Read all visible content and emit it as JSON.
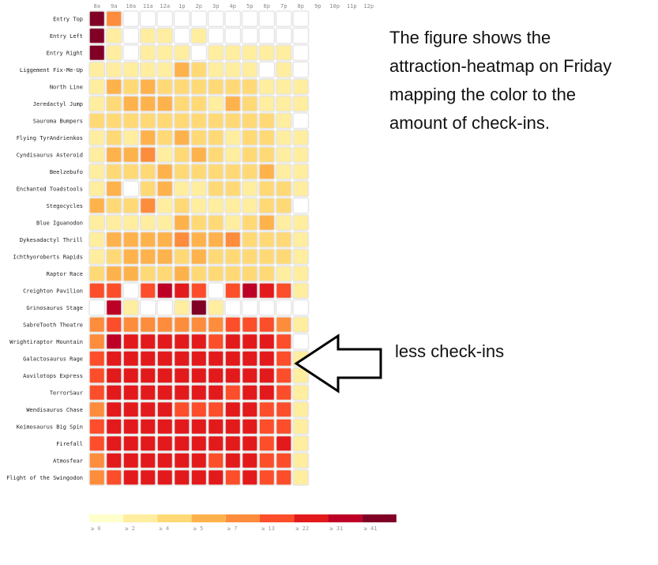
{
  "chart_data": {
    "type": "heatmap",
    "columns": [
      "8a",
      "9a",
      "10a",
      "11a",
      "12a",
      "1p",
      "2p",
      "3p",
      "4p",
      "5p",
      "6p",
      "7p",
      "8p",
      "9p",
      "10p",
      "11p",
      "12p"
    ],
    "rows": [
      "Entry Top",
      "Entry Left",
      "Entry Right",
      "Liggement Fix-Me-Up",
      "North Line",
      "Jeredactyl Jump",
      "Sauroma Bumpers",
      "Flying TyrAndrienkos",
      "Cyndisaurus Asteroid",
      "Beelzebufo",
      "Enchanted Toadstools",
      "Stegocycles",
      "Blue Iguanodon",
      "Dykesadactyl Thrill",
      "Ichthyoroberts Rapids",
      "Raptor Race",
      "Creighton Pavilion",
      "Grinosaurus Stage",
      "SabreTooth Theatre",
      "Wrightiraptor Mountain",
      "Galactosaurus Rage",
      "Auvilotops Express",
      "TerrorSaur",
      "Wendisaurus Chase",
      "Keimosaurus Big Spin",
      "Firefall",
      "Atmosfear",
      "Flight of the Swingodon"
    ],
    "levels": [
      [
        8,
        4,
        0,
        0,
        0,
        0,
        0,
        0,
        0,
        0,
        0,
        0,
        0
      ],
      [
        8,
        1,
        0,
        1,
        1,
        0,
        1,
        0,
        0,
        0,
        0,
        0,
        0
      ],
      [
        8,
        1,
        0,
        1,
        1,
        1,
        0,
        1,
        1,
        1,
        1,
        1,
        0
      ],
      [
        1,
        1,
        1,
        1,
        1,
        3,
        2,
        1,
        1,
        1,
        0,
        1,
        0
      ],
      [
        1,
        3,
        2,
        3,
        2,
        2,
        2,
        2,
        2,
        2,
        1,
        1,
        1
      ],
      [
        1,
        2,
        3,
        3,
        3,
        2,
        2,
        1,
        3,
        2,
        1,
        1,
        1
      ],
      [
        2,
        2,
        2,
        2,
        2,
        2,
        2,
        2,
        2,
        2,
        2,
        1,
        0
      ],
      [
        1,
        2,
        1,
        3,
        2,
        3,
        2,
        2,
        1,
        2,
        2,
        1,
        1
      ],
      [
        1,
        3,
        3,
        4,
        1,
        2,
        3,
        2,
        1,
        2,
        2,
        1,
        1
      ],
      [
        1,
        2,
        2,
        2,
        3,
        2,
        2,
        2,
        2,
        2,
        3,
        1,
        1
      ],
      [
        1,
        3,
        0,
        2,
        3,
        1,
        1,
        2,
        2,
        1,
        2,
        2,
        1
      ],
      [
        3,
        2,
        2,
        4,
        1,
        2,
        1,
        1,
        1,
        1,
        2,
        2,
        0
      ],
      [
        1,
        1,
        1,
        1,
        1,
        3,
        2,
        2,
        1,
        2,
        3,
        1,
        1
      ],
      [
        1,
        3,
        3,
        3,
        3,
        4,
        3,
        3,
        4,
        2,
        2,
        2,
        1
      ],
      [
        1,
        2,
        3,
        3,
        3,
        2,
        3,
        2,
        2,
        2,
        2,
        2,
        1
      ],
      [
        2,
        3,
        3,
        2,
        2,
        3,
        2,
        2,
        2,
        2,
        2,
        1,
        1
      ],
      [
        5,
        5,
        0,
        5,
        7,
        6,
        5,
        0,
        5,
        7,
        6,
        5,
        1
      ],
      [
        0,
        7,
        1,
        0,
        0,
        1,
        8,
        1,
        0,
        0,
        0,
        0,
        0
      ],
      [
        4,
        5,
        4,
        4,
        4,
        4,
        4,
        4,
        5,
        5,
        5,
        4,
        1
      ],
      [
        4,
        7,
        6,
        6,
        6,
        6,
        6,
        5,
        6,
        6,
        6,
        5,
        0
      ],
      [
        5,
        6,
        6,
        6,
        6,
        6,
        6,
        6,
        6,
        6,
        6,
        5,
        1
      ],
      [
        5,
        6,
        6,
        6,
        6,
        6,
        6,
        6,
        6,
        6,
        6,
        5,
        1
      ],
      [
        5,
        6,
        6,
        6,
        6,
        6,
        6,
        6,
        5,
        6,
        6,
        5,
        1
      ],
      [
        4,
        6,
        6,
        6,
        6,
        5,
        5,
        5,
        6,
        6,
        5,
        5,
        1
      ],
      [
        5,
        6,
        6,
        6,
        6,
        6,
        6,
        6,
        6,
        6,
        5,
        5,
        1
      ],
      [
        5,
        6,
        6,
        6,
        6,
        6,
        6,
        6,
        6,
        6,
        5,
        6,
        1
      ],
      [
        4,
        6,
        6,
        6,
        6,
        6,
        6,
        5,
        6,
        6,
        5,
        5,
        1
      ],
      [
        4,
        5,
        6,
        6,
        6,
        6,
        6,
        6,
        5,
        6,
        5,
        5,
        1
      ]
    ],
    "legend_labels": [
      "≥ 0",
      "≥ 2",
      "≥ 4",
      "≥ 5",
      "≥ 7",
      "≥ 13",
      "≥ 22",
      "≥ 31",
      "≥ 41"
    ],
    "legend_colors": [
      "#ffffcc",
      "#ffeda0",
      "#fed976",
      "#feb24c",
      "#fd8d3c",
      "#fc4e2a",
      "#e31a1c",
      "#bd0026",
      "#800026"
    ],
    "empty_color": "#ffffff"
  },
  "annotations": {
    "caption": "The figure shows the attraction-heatmap on Friday mapping the color to the amount of check-ins.",
    "arrow_label": "less check-ins"
  }
}
